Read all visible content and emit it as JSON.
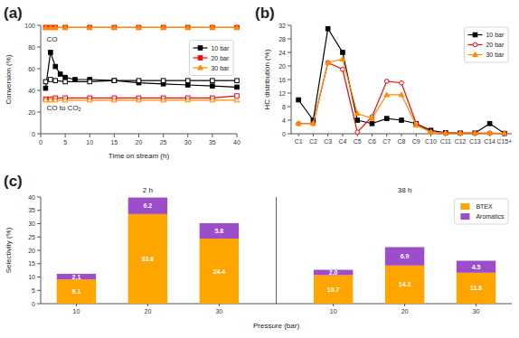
{
  "chart_data": [
    {
      "type": "line",
      "title": "(a)",
      "annotations": [
        "CO",
        "CO to CO₂"
      ],
      "xlabel": "Time on stream (h)",
      "ylabel": "Conversion (%)",
      "xlim": [
        0,
        40
      ],
      "ylim": [
        0,
        100
      ],
      "xticks": [
        0,
        5,
        10,
        15,
        20,
        25,
        30,
        35,
        40
      ],
      "yticks": [
        0,
        20,
        40,
        60,
        80,
        100
      ],
      "legend": "right",
      "series": [
        {
          "name": "10 bar",
          "color": "#000000",
          "marker": "square",
          "x": [
            1,
            2,
            3,
            4,
            5,
            7,
            10,
            15,
            20,
            25,
            30,
            35,
            40
          ],
          "values": [
            42,
            75,
            62,
            55,
            52,
            50,
            50,
            49,
            47,
            46,
            45,
            44,
            43
          ]
        },
        {
          "name": "20 bar",
          "color": "#ff0000",
          "marker": "square",
          "x": [
            1,
            2,
            3,
            5,
            10,
            15,
            20,
            25,
            30,
            35,
            40
          ],
          "values": [
            98,
            98,
            98,
            98,
            98,
            98,
            98,
            98,
            98,
            98,
            98
          ]
        },
        {
          "name": "30 bar",
          "color": "#ff8c00",
          "marker": "triangle",
          "x": [
            1,
            2,
            3,
            5,
            10,
            15,
            20,
            25,
            30,
            35,
            40
          ],
          "values": [
            98,
            98,
            98,
            98,
            98,
            98,
            98,
            98,
            98,
            98,
            98
          ]
        },
        {
          "color": "#000000",
          "marker": "open-square",
          "x": [
            1,
            2,
            3,
            5,
            10,
            15,
            20,
            25,
            30,
            35,
            40
          ],
          "values": [
            48,
            50,
            49,
            48,
            48,
            49,
            49,
            49,
            49,
            49,
            49
          ]
        },
        {
          "color": "#ff0000",
          "marker": "open-square",
          "x": [
            1,
            2,
            3,
            5,
            10,
            15,
            20,
            25,
            30,
            35,
            40
          ],
          "values": [
            32,
            32,
            33,
            33,
            33,
            33,
            33,
            33,
            33,
            33,
            35
          ]
        },
        {
          "color": "#ff8c00",
          "marker": "open-triangle",
          "x": [
            1,
            2,
            3,
            5,
            10,
            15,
            20,
            25,
            30,
            35,
            40
          ],
          "values": [
            31,
            31,
            31,
            31,
            31,
            31,
            31,
            31,
            31,
            31,
            31
          ]
        }
      ]
    },
    {
      "type": "line",
      "title": "(b)",
      "ylabel": "HC distribution (%)",
      "categories": [
        "C1",
        "C2",
        "C3",
        "C4",
        "C5",
        "C6",
        "C7",
        "C8",
        "C9",
        "C10",
        "C11",
        "C12",
        "C13",
        "C14",
        "C15+"
      ],
      "ylim": [
        0,
        32
      ],
      "yticks": [
        0,
        4,
        8,
        12,
        16,
        20,
        24,
        28,
        32
      ],
      "legend": "upper right",
      "series": [
        {
          "name": "10 bar",
          "color": "#000000",
          "marker": "square",
          "values": [
            10,
            4,
            31,
            24,
            4,
            3,
            4.5,
            4,
            3,
            1,
            0.3,
            0.2,
            0.2,
            3,
            0.1
          ]
        },
        {
          "name": "20 bar",
          "color": "#ff0000",
          "marker": "open-circle",
          "values": [
            3,
            3,
            21,
            19,
            0.5,
            5,
            15.5,
            15,
            3,
            0.5,
            0.2,
            0.2,
            0.2,
            0.2,
            0.1
          ]
        },
        {
          "name": "30 bar",
          "color": "#ff8c00",
          "marker": "triangle",
          "values": [
            3,
            3,
            21,
            22,
            6,
            4.5,
            11.5,
            11.5,
            2.5,
            0.5,
            0.2,
            0.2,
            0.2,
            0.2,
            0.1
          ]
        }
      ]
    },
    {
      "type": "bar",
      "stacked": true,
      "data_labels": true,
      "title": "(c)",
      "annotations": [
        "2 h",
        "38 h"
      ],
      "xlabel": "Pressure (bar)",
      "ylabel": "Selectivity (%)",
      "categories": [
        "10",
        "20",
        "30",
        "10",
        "20",
        "30"
      ],
      "ylim": [
        0,
        40
      ],
      "yticks": [
        0,
        5,
        10,
        15,
        20,
        25,
        30,
        35,
        40
      ],
      "legend": "upper right",
      "series": [
        {
          "name": "BTEX",
          "color": "#FFA500",
          "values": [
            9.1,
            33.6,
            24.4,
            10.7,
            14.3,
            11.6
          ]
        },
        {
          "name": "Aromatics",
          "color": "#9b4dca",
          "values": [
            2.1,
            6.2,
            5.8,
            2.0,
            6.9,
            4.5
          ],
          "value_labels": [
            "2.1",
            "6.2",
            "5.8",
            "2.0",
            "6.9",
            "4.5"
          ]
        }
      ]
    }
  ]
}
